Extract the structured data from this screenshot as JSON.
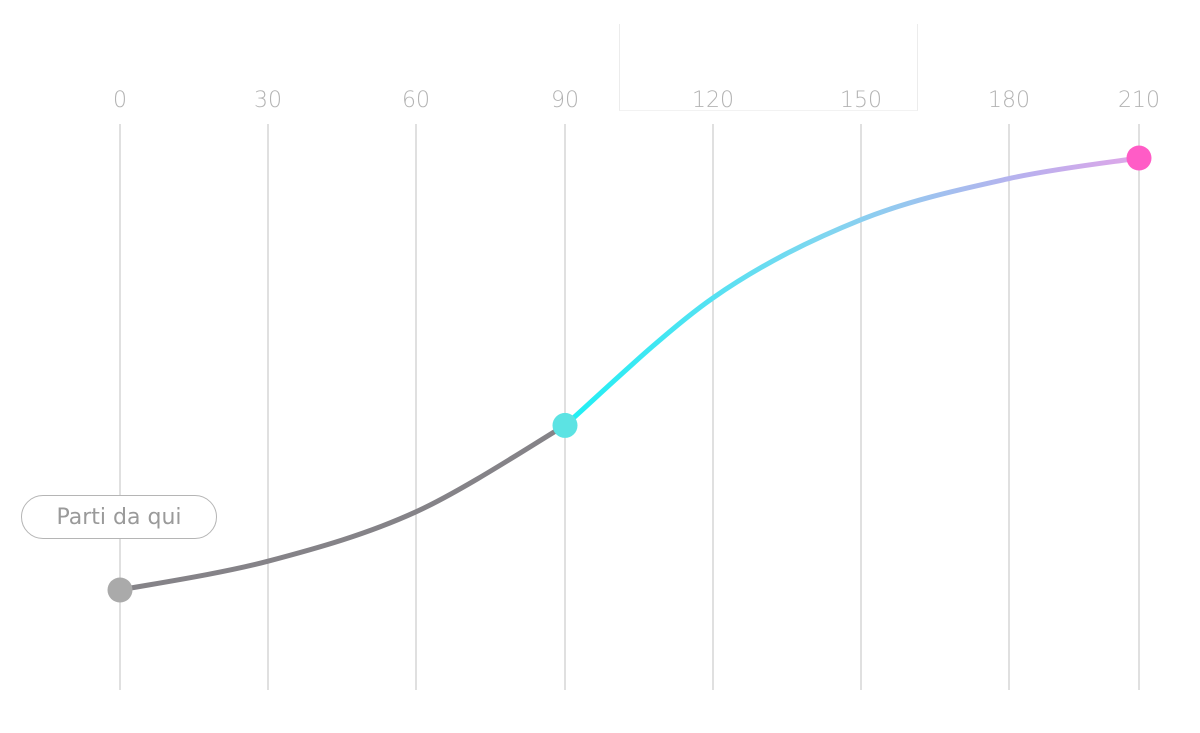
{
  "chart_data": {
    "type": "line",
    "x_ticks": [
      0,
      30,
      60,
      90,
      120,
      150,
      180,
      210
    ],
    "xlim": [
      0,
      210
    ],
    "grid": "vertical",
    "series": [
      {
        "segment": "past",
        "color": "#858388",
        "points": [
          [
            0,
            0
          ],
          [
            30,
            0.07
          ],
          [
            60,
            0.19
          ],
          [
            90,
            0.4
          ]
        ]
      },
      {
        "segment": "future",
        "gradient": [
          "#1ef0f4",
          "#7fd6f0",
          "#b9b0ee",
          "#e0a6e8"
        ],
        "points": [
          [
            90,
            0.4
          ],
          [
            120,
            0.71
          ],
          [
            150,
            0.9
          ],
          [
            180,
            1.0
          ],
          [
            210,
            1.05
          ]
        ]
      }
    ],
    "markers": [
      {
        "name": "start-marker",
        "x": 0,
        "color": "#aaaaaa"
      },
      {
        "name": "current-marker",
        "x": 90,
        "color": "#5ce3e3"
      },
      {
        "name": "end-marker",
        "x": 210,
        "color": "#ff5cc6"
      }
    ],
    "annotations": [
      {
        "text": "Parti da qui",
        "x": 0
      }
    ]
  },
  "labels": {
    "start_pill": "Parti da qui"
  }
}
